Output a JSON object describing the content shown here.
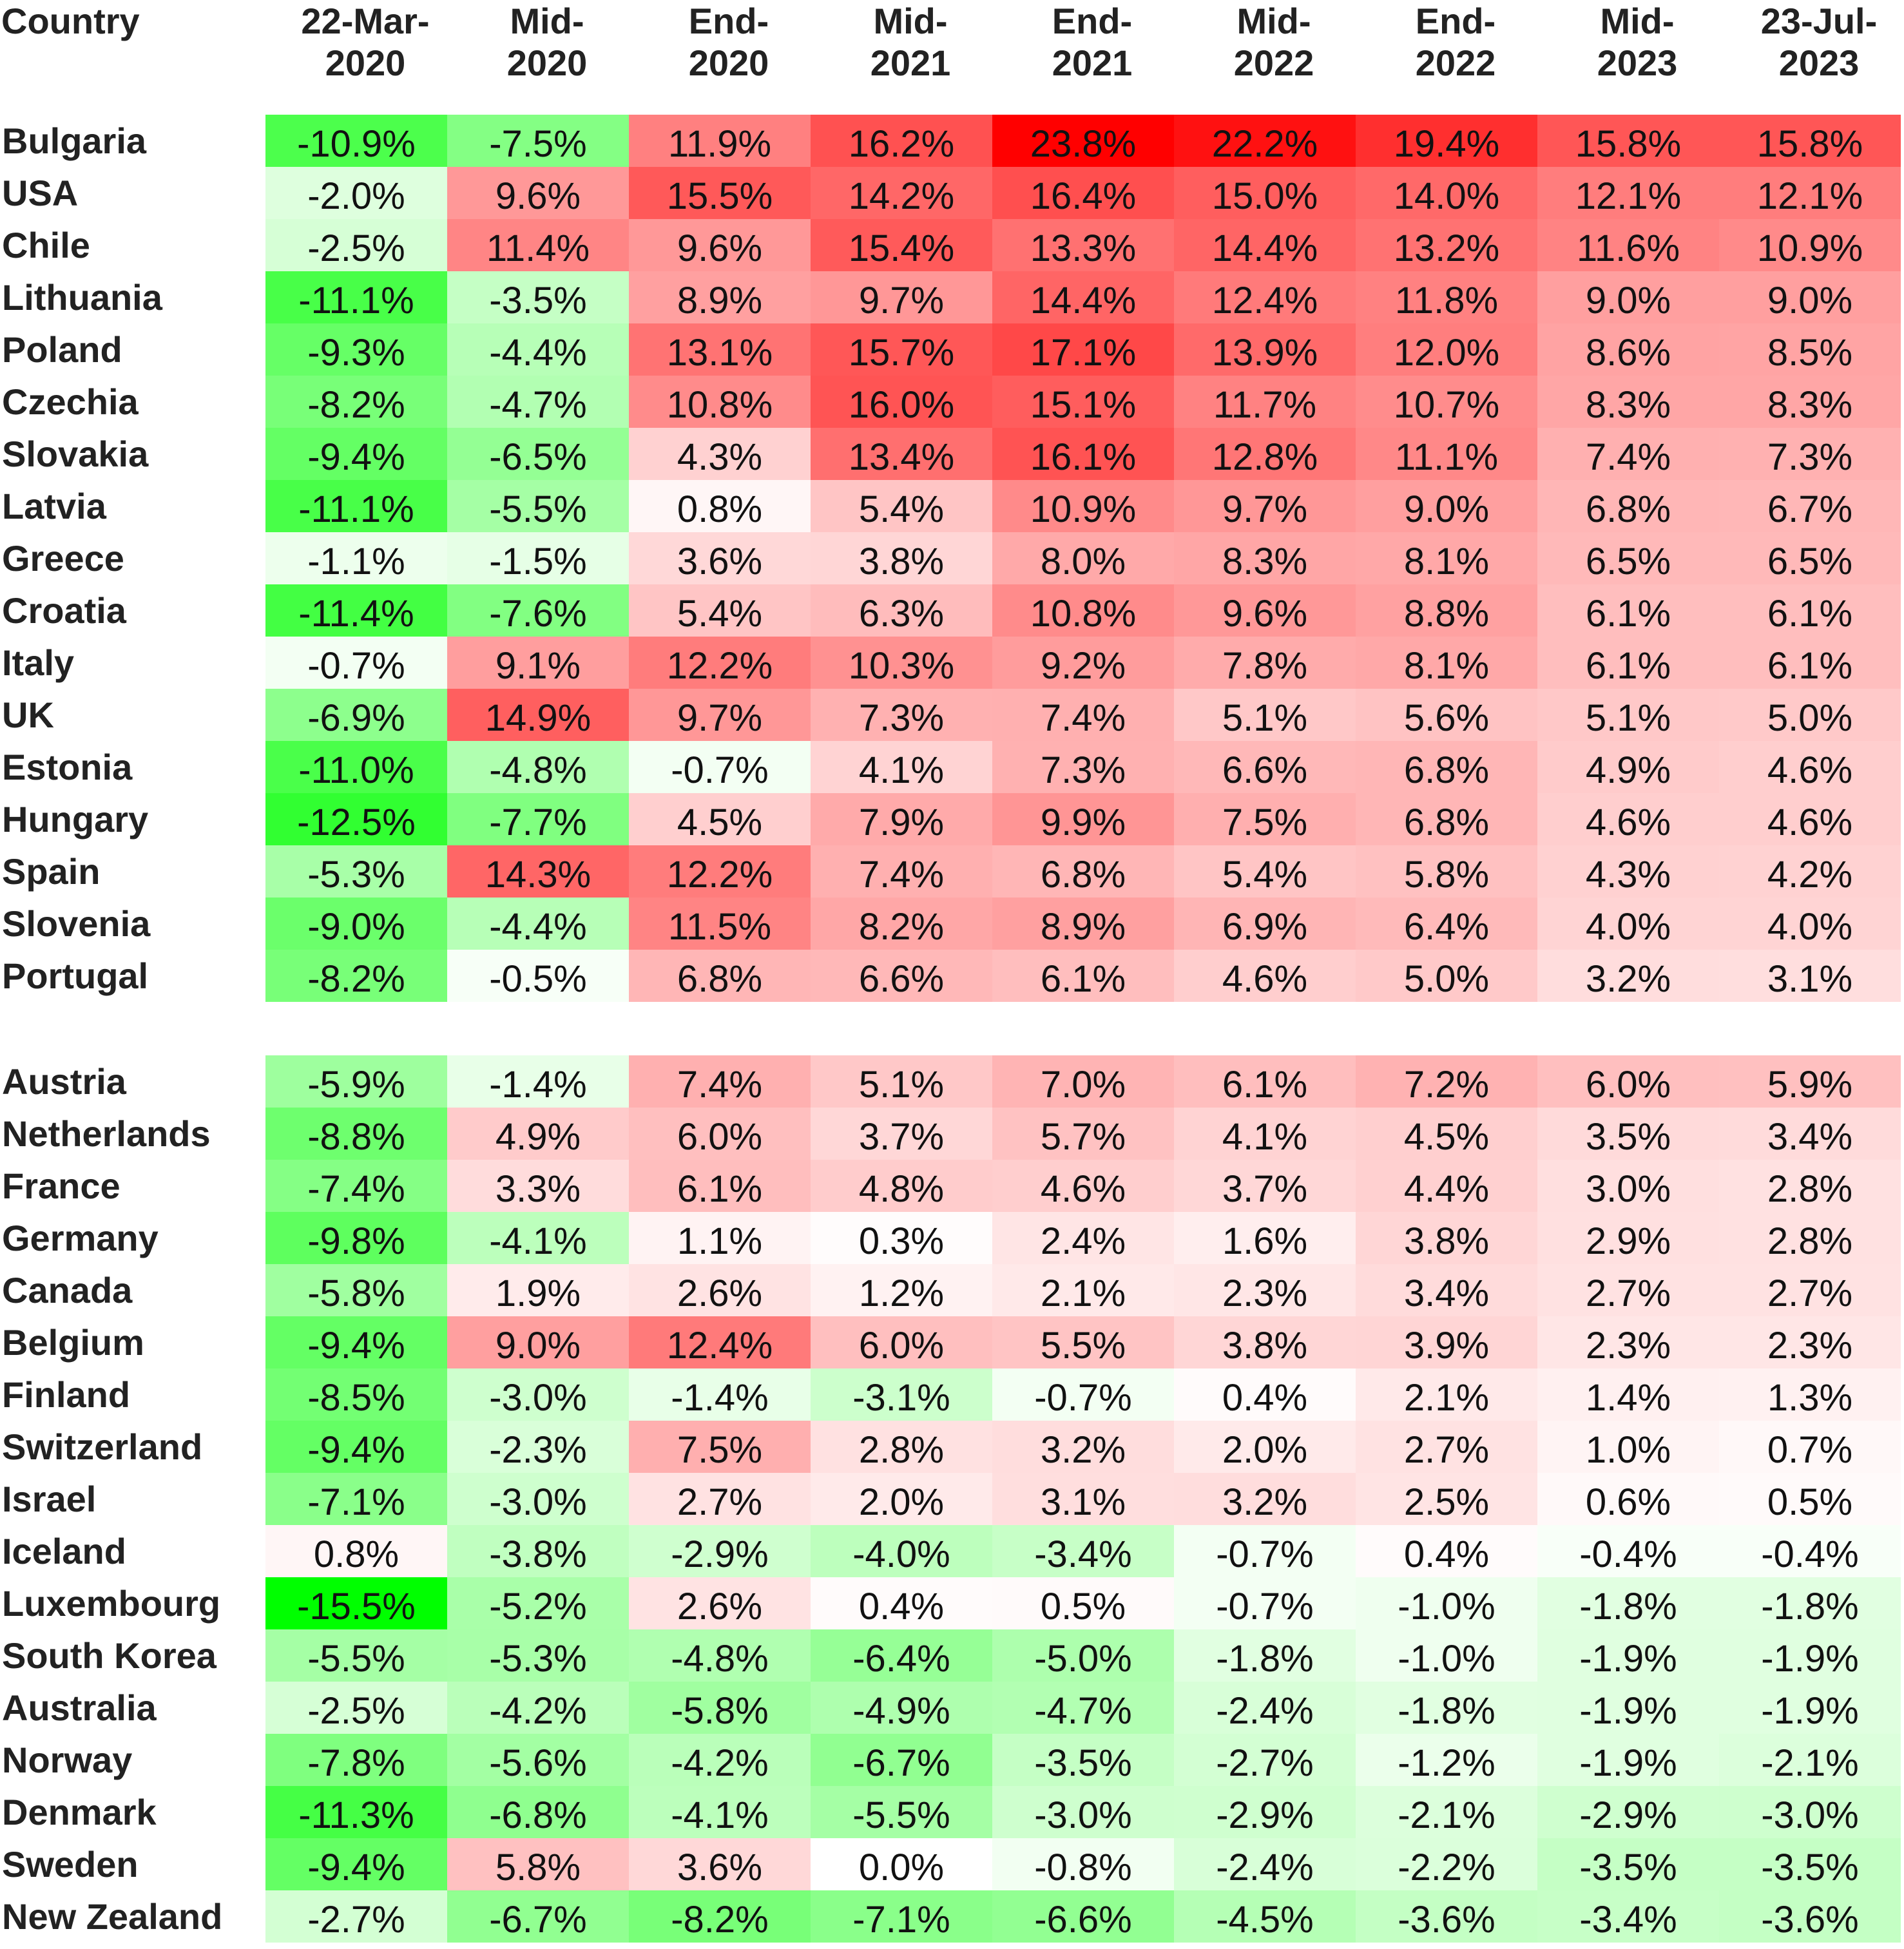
{
  "chart_data": {
    "type": "heatmap",
    "colors": {
      "negative": "#00ff00",
      "positive": "#ff0000",
      "zero": "#ffffff"
    },
    "columns": [
      "Country",
      "22-Mar-\n2020",
      "Mid-\n2020",
      "End-\n2020",
      "Mid-\n2021",
      "End-\n2021",
      "Mid-\n2022",
      "End-\n2022",
      "Mid-\n2023",
      "23-Jul-\n2023"
    ],
    "groups": [
      {
        "rows": [
          {
            "country": "Bulgaria",
            "values": [
              -10.9,
              -7.5,
              11.9,
              16.2,
              23.8,
              22.2,
              19.4,
              15.8,
              15.8
            ],
            "labels": [
              "-10.9%",
              "-7.5%",
              "11.9%",
              "16.2%",
              "23.8%",
              "22.2%",
              "19.4%",
              "15.8%",
              "15.8%"
            ]
          },
          {
            "country": "USA",
            "values": [
              -2.0,
              9.6,
              15.5,
              14.2,
              16.4,
              15.0,
              14.0,
              12.1,
              12.1
            ],
            "labels": [
              "-2.0%",
              "9.6%",
              "15.5%",
              "14.2%",
              "16.4%",
              "15.0%",
              "14.0%",
              "12.1%",
              "12.1%"
            ]
          },
          {
            "country": "Chile",
            "values": [
              -2.5,
              11.4,
              9.6,
              15.4,
              13.3,
              14.4,
              13.2,
              11.6,
              10.9
            ],
            "labels": [
              "-2.5%",
              "11.4%",
              "9.6%",
              "15.4%",
              "13.3%",
              "14.4%",
              "13.2%",
              "11.6%",
              "10.9%"
            ]
          },
          {
            "country": "Lithuania",
            "values": [
              -11.1,
              -3.5,
              8.9,
              9.7,
              14.4,
              12.4,
              11.8,
              9.0,
              9.0
            ],
            "labels": [
              "-11.1%",
              "-3.5%",
              "8.9%",
              "9.7%",
              "14.4%",
              "12.4%",
              "11.8%",
              "9.0%",
              "9.0%"
            ]
          },
          {
            "country": "Poland",
            "values": [
              -9.3,
              -4.4,
              13.1,
              15.7,
              17.1,
              13.9,
              12.0,
              8.6,
              8.5
            ],
            "labels": [
              "-9.3%",
              "-4.4%",
              "13.1%",
              "15.7%",
              "17.1%",
              "13.9%",
              "12.0%",
              "8.6%",
              "8.5%"
            ]
          },
          {
            "country": "Czechia",
            "values": [
              -8.2,
              -4.7,
              10.8,
              16.0,
              15.1,
              11.7,
              10.7,
              8.3,
              8.3
            ],
            "labels": [
              "-8.2%",
              "-4.7%",
              "10.8%",
              "16.0%",
              "15.1%",
              "11.7%",
              "10.7%",
              "8.3%",
              "8.3%"
            ]
          },
          {
            "country": "Slovakia",
            "values": [
              -9.4,
              -6.5,
              4.3,
              13.4,
              16.1,
              12.8,
              11.1,
              7.4,
              7.3
            ],
            "labels": [
              "-9.4%",
              "-6.5%",
              "4.3%",
              "13.4%",
              "16.1%",
              "12.8%",
              "11.1%",
              "7.4%",
              "7.3%"
            ]
          },
          {
            "country": "Latvia",
            "values": [
              -11.1,
              -5.5,
              0.8,
              5.4,
              10.9,
              9.7,
              9.0,
              6.8,
              6.7
            ],
            "labels": [
              "-11.1%",
              "-5.5%",
              "0.8%",
              "5.4%",
              "10.9%",
              "9.7%",
              "9.0%",
              "6.8%",
              "6.7%"
            ]
          },
          {
            "country": "Greece",
            "values": [
              -1.1,
              -1.5,
              3.6,
              3.8,
              8.0,
              8.3,
              8.1,
              6.5,
              6.5
            ],
            "labels": [
              "-1.1%",
              "-1.5%",
              "3.6%",
              "3.8%",
              "8.0%",
              "8.3%",
              "8.1%",
              "6.5%",
              "6.5%"
            ]
          },
          {
            "country": "Croatia",
            "values": [
              -11.4,
              -7.6,
              5.4,
              6.3,
              10.8,
              9.6,
              8.8,
              6.1,
              6.1
            ],
            "labels": [
              "-11.4%",
              "-7.6%",
              "5.4%",
              "6.3%",
              "10.8%",
              "9.6%",
              "8.8%",
              "6.1%",
              "6.1%"
            ]
          },
          {
            "country": "Italy",
            "values": [
              -0.7,
              9.1,
              12.2,
              10.3,
              9.2,
              7.8,
              8.1,
              6.1,
              6.1
            ],
            "labels": [
              "-0.7%",
              "9.1%",
              "12.2%",
              "10.3%",
              "9.2%",
              "7.8%",
              "8.1%",
              "6.1%",
              "6.1%"
            ]
          },
          {
            "country": "UK",
            "values": [
              -6.9,
              14.9,
              9.7,
              7.3,
              7.4,
              5.1,
              5.6,
              5.1,
              5.0
            ],
            "labels": [
              "-6.9%",
              "14.9%",
              "9.7%",
              "7.3%",
              "7.4%",
              "5.1%",
              "5.6%",
              "5.1%",
              "5.0%"
            ]
          },
          {
            "country": "Estonia",
            "values": [
              -11.0,
              -4.8,
              -0.7,
              4.1,
              7.3,
              6.6,
              6.8,
              4.9,
              4.6
            ],
            "labels": [
              "-11.0%",
              "-4.8%",
              "-0.7%",
              "4.1%",
              "7.3%",
              "6.6%",
              "6.8%",
              "4.9%",
              "4.6%"
            ]
          },
          {
            "country": "Hungary",
            "values": [
              -12.5,
              -7.7,
              4.5,
              7.9,
              9.9,
              7.5,
              6.8,
              4.6,
              4.6
            ],
            "labels": [
              "-12.5%",
              "-7.7%",
              "4.5%",
              "7.9%",
              "9.9%",
              "7.5%",
              "6.8%",
              "4.6%",
              "4.6%"
            ]
          },
          {
            "country": "Spain",
            "values": [
              -5.3,
              14.3,
              12.2,
              7.4,
              6.8,
              5.4,
              5.8,
              4.3,
              4.2
            ],
            "labels": [
              "-5.3%",
              "14.3%",
              "12.2%",
              "7.4%",
              "6.8%",
              "5.4%",
              "5.8%",
              "4.3%",
              "4.2%"
            ]
          },
          {
            "country": "Slovenia",
            "values": [
              -9.0,
              -4.4,
              11.5,
              8.2,
              8.9,
              6.9,
              6.4,
              4.0,
              4.0
            ],
            "labels": [
              "-9.0%",
              "-4.4%",
              "11.5%",
              "8.2%",
              "8.9%",
              "6.9%",
              "6.4%",
              "4.0%",
              "4.0%"
            ]
          },
          {
            "country": "Portugal",
            "values": [
              -8.2,
              -0.5,
              6.8,
              6.6,
              6.1,
              4.6,
              5.0,
              3.2,
              3.1
            ],
            "labels": [
              "-8.2%",
              "-0.5%",
              "6.8%",
              "6.6%",
              "6.1%",
              "4.6%",
              "5.0%",
              "3.2%",
              "3.1%"
            ]
          }
        ]
      },
      {
        "rows": [
          {
            "country": "Austria",
            "values": [
              -5.9,
              -1.4,
              7.4,
              5.1,
              7.0,
              6.1,
              7.2,
              6.0,
              5.9
            ],
            "labels": [
              "-5.9%",
              "-1.4%",
              "7.4%",
              "5.1%",
              "7.0%",
              "6.1%",
              "7.2%",
              "6.0%",
              "5.9%"
            ]
          },
          {
            "country": "Netherlands",
            "values": [
              -8.8,
              4.9,
              6.0,
              3.7,
              5.7,
              4.1,
              4.5,
              3.5,
              3.4
            ],
            "labels": [
              "-8.8%",
              "4.9%",
              "6.0%",
              "3.7%",
              "5.7%",
              "4.1%",
              "4.5%",
              "3.5%",
              "3.4%"
            ]
          },
          {
            "country": "France",
            "values": [
              -7.4,
              3.3,
              6.1,
              4.8,
              4.6,
              3.7,
              4.4,
              3.0,
              2.8
            ],
            "labels": [
              "-7.4%",
              "3.3%",
              "6.1%",
              "4.8%",
              "4.6%",
              "3.7%",
              "4.4%",
              "3.0%",
              "2.8%"
            ]
          },
          {
            "country": "Germany",
            "values": [
              -9.8,
              -4.1,
              1.1,
              0.3,
              2.4,
              1.6,
              3.8,
              2.9,
              2.8
            ],
            "labels": [
              "-9.8%",
              "-4.1%",
              "1.1%",
              "0.3%",
              "2.4%",
              "1.6%",
              "3.8%",
              "2.9%",
              "2.8%"
            ]
          },
          {
            "country": "Canada",
            "values": [
              -5.8,
              1.9,
              2.6,
              1.2,
              2.1,
              2.3,
              3.4,
              2.7,
              2.7
            ],
            "labels": [
              "-5.8%",
              "1.9%",
              "2.6%",
              "1.2%",
              "2.1%",
              "2.3%",
              "3.4%",
              "2.7%",
              "2.7%"
            ]
          },
          {
            "country": "Belgium",
            "values": [
              -9.4,
              9.0,
              12.4,
              6.0,
              5.5,
              3.8,
              3.9,
              2.3,
              2.3
            ],
            "labels": [
              "-9.4%",
              "9.0%",
              "12.4%",
              "6.0%",
              "5.5%",
              "3.8%",
              "3.9%",
              "2.3%",
              "2.3%"
            ]
          },
          {
            "country": "Finland",
            "values": [
              -8.5,
              -3.0,
              -1.4,
              -3.1,
              -0.7,
              0.4,
              2.1,
              1.4,
              1.3
            ],
            "labels": [
              "-8.5%",
              "-3.0%",
              "-1.4%",
              "-3.1%",
              "-0.7%",
              "0.4%",
              "2.1%",
              "1.4%",
              "1.3%"
            ]
          },
          {
            "country": "Switzerland",
            "values": [
              -9.4,
              -2.3,
              7.5,
              2.8,
              3.2,
              2.0,
              2.7,
              1.0,
              0.7
            ],
            "labels": [
              "-9.4%",
              "-2.3%",
              "7.5%",
              "2.8%",
              "3.2%",
              "2.0%",
              "2.7%",
              "1.0%",
              "0.7%"
            ]
          },
          {
            "country": "Israel",
            "values": [
              -7.1,
              -3.0,
              2.7,
              2.0,
              3.1,
              3.2,
              2.5,
              0.6,
              0.5
            ],
            "labels": [
              "-7.1%",
              "-3.0%",
              "2.7%",
              "2.0%",
              "3.1%",
              "3.2%",
              "2.5%",
              "0.6%",
              "0.5%"
            ]
          },
          {
            "country": "Iceland",
            "values": [
              0.8,
              -3.8,
              -2.9,
              -4.0,
              -3.4,
              -0.7,
              0.4,
              -0.4,
              -0.4
            ],
            "labels": [
              "0.8%",
              "-3.8%",
              "-2.9%",
              "-4.0%",
              "-3.4%",
              "-0.7%",
              "0.4%",
              "-0.4%",
              "-0.4%"
            ]
          },
          {
            "country": "Luxembourg",
            "values": [
              -15.5,
              -5.2,
              2.6,
              0.4,
              0.5,
              -0.7,
              -1.0,
              -1.8,
              -1.8
            ],
            "labels": [
              "-15.5%",
              "-5.2%",
              "2.6%",
              "0.4%",
              "0.5%",
              "-0.7%",
              "-1.0%",
              "-1.8%",
              "-1.8%"
            ]
          },
          {
            "country": "South Korea",
            "values": [
              -5.5,
              -5.3,
              -4.8,
              -6.4,
              -5.0,
              -1.8,
              -1.0,
              -1.9,
              -1.9
            ],
            "labels": [
              "-5.5%",
              "-5.3%",
              "-4.8%",
              "-6.4%",
              "-5.0%",
              "-1.8%",
              "-1.0%",
              "-1.9%",
              "-1.9%"
            ]
          },
          {
            "country": "Australia",
            "values": [
              -2.5,
              -4.2,
              -5.8,
              -4.9,
              -4.7,
              -2.4,
              -1.8,
              -1.9,
              -1.9
            ],
            "labels": [
              "-2.5%",
              "-4.2%",
              "-5.8%",
              "-4.9%",
              "-4.7%",
              "-2.4%",
              "-1.8%",
              "-1.9%",
              "-1.9%"
            ]
          },
          {
            "country": "Norway",
            "values": [
              -7.8,
              -5.6,
              -4.2,
              -6.7,
              -3.5,
              -2.7,
              -1.2,
              -1.9,
              -2.1
            ],
            "labels": [
              "-7.8%",
              "-5.6%",
              "-4.2%",
              "-6.7%",
              "-3.5%",
              "-2.7%",
              "-1.2%",
              "-1.9%",
              "-2.1%"
            ]
          },
          {
            "country": "Denmark",
            "values": [
              -11.3,
              -6.8,
              -4.1,
              -5.5,
              -3.0,
              -2.9,
              -2.1,
              -2.9,
              -3.0
            ],
            "labels": [
              "-11.3%",
              "-6.8%",
              "-4.1%",
              "-5.5%",
              "-3.0%",
              "-2.9%",
              "-2.1%",
              "-2.9%",
              "-3.0%"
            ]
          },
          {
            "country": "Sweden",
            "values": [
              -9.4,
              5.8,
              3.6,
              0.0,
              -0.8,
              -2.4,
              -2.2,
              -3.5,
              -3.5
            ],
            "labels": [
              "-9.4%",
              "5.8%",
              "3.6%",
              "0.0%",
              "-0.8%",
              "-2.4%",
              "-2.2%",
              "-3.5%",
              "-3.5%"
            ]
          },
          {
            "country": "New Zealand",
            "values": [
              -2.7,
              -6.7,
              -8.2,
              -7.1,
              -6.6,
              -4.5,
              -3.6,
              -3.4,
              -3.6
            ],
            "labels": [
              "-2.7%",
              "-6.7%",
              "-8.2%",
              "-7.1%",
              "-6.6%",
              "-4.5%",
              "-3.6%",
              "-3.4%",
              "-3.6%"
            ]
          }
        ]
      }
    ]
  }
}
